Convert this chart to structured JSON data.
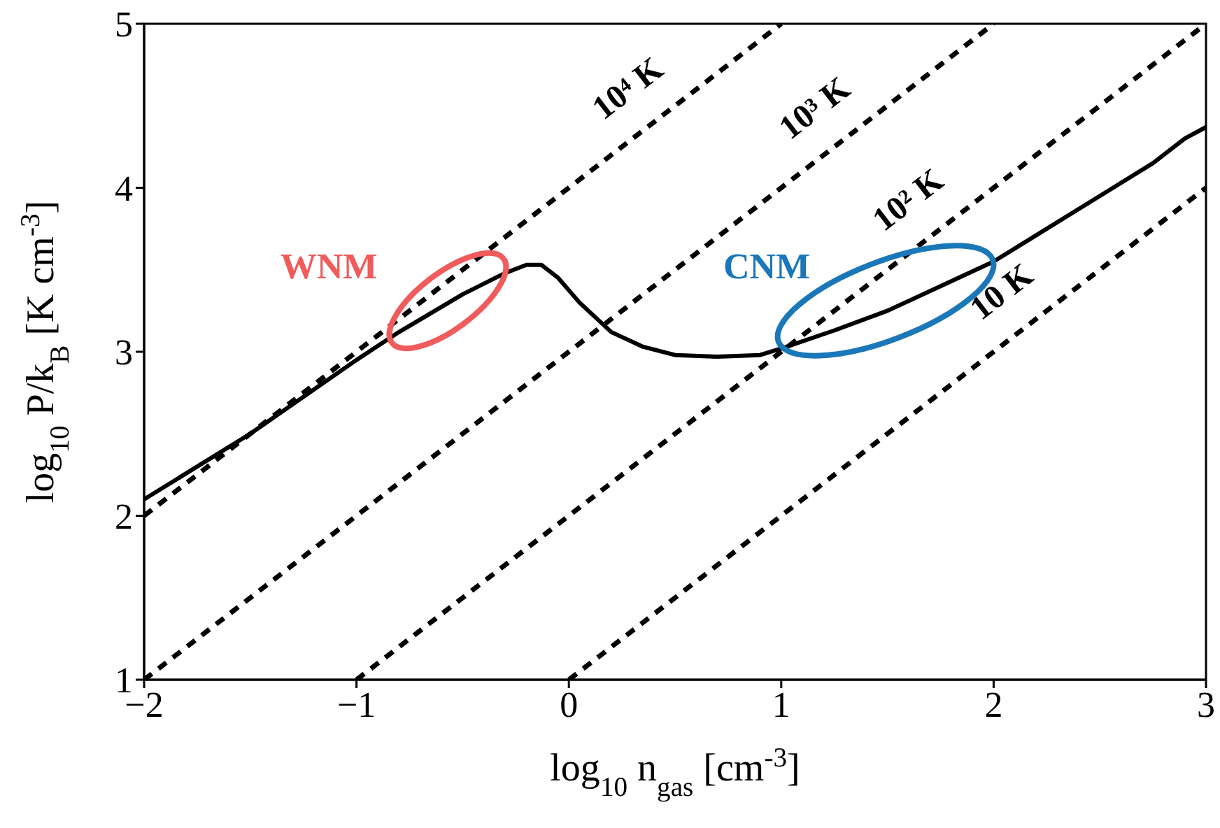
{
  "chart_data": {
    "type": "line",
    "xlabel": "log$_{10}$ n$_{gas}$ [cm$^{-3}$]",
    "ylabel": "log$_{10}$ P/k$_{B}$ [K cm$^{-3}$]",
    "xlim": [
      -2,
      3
    ],
    "ylim": [
      1,
      5
    ],
    "xticks": [
      -2,
      -1,
      0,
      1,
      2,
      3
    ],
    "yticks": [
      1,
      2,
      3,
      4,
      5
    ],
    "marker": "none",
    "series": [
      {
        "color": "#000000",
        "line_style": "solid",
        "x": [
          -2,
          -1.5,
          -1,
          -0.8,
          -0.5,
          -0.3,
          -0.2,
          -0.13,
          -0.05,
          0.05,
          0.2,
          0.35,
          0.5,
          0.7,
          0.9,
          1.0,
          1.25,
          1.5,
          1.75,
          2.0,
          2.25,
          2.5,
          2.75,
          2.9,
          3.0
        ],
        "values": [
          2.1,
          2.5,
          2.95,
          3.12,
          3.35,
          3.48,
          3.53,
          3.53,
          3.45,
          3.3,
          3.12,
          3.03,
          2.98,
          2.97,
          2.98,
          3.02,
          3.13,
          3.25,
          3.4,
          3.55,
          3.75,
          3.95,
          4.15,
          4.3,
          4.37
        ]
      },
      {
        "name": "10⁴ K",
        "color": "#000000",
        "line_style": "dashed",
        "x": [
          -2,
          1
        ],
        "values": [
          2,
          5
        ]
      },
      {
        "name": "10³ K",
        "color": "#000000",
        "line_style": "dashed",
        "x": [
          -2,
          2
        ],
        "values": [
          1,
          5
        ]
      },
      {
        "name": "10² K",
        "color": "#000000",
        "line_style": "dashed",
        "x": [
          -1,
          3
        ],
        "values": [
          1,
          5
        ]
      },
      {
        "name": "10 K",
        "color": "#000000",
        "line_style": "dashed",
        "x": [
          0,
          3
        ],
        "values": [
          1,
          4
        ]
      }
    ],
    "annotations": [
      "WNM",
      "CNM"
    ]
  }
}
